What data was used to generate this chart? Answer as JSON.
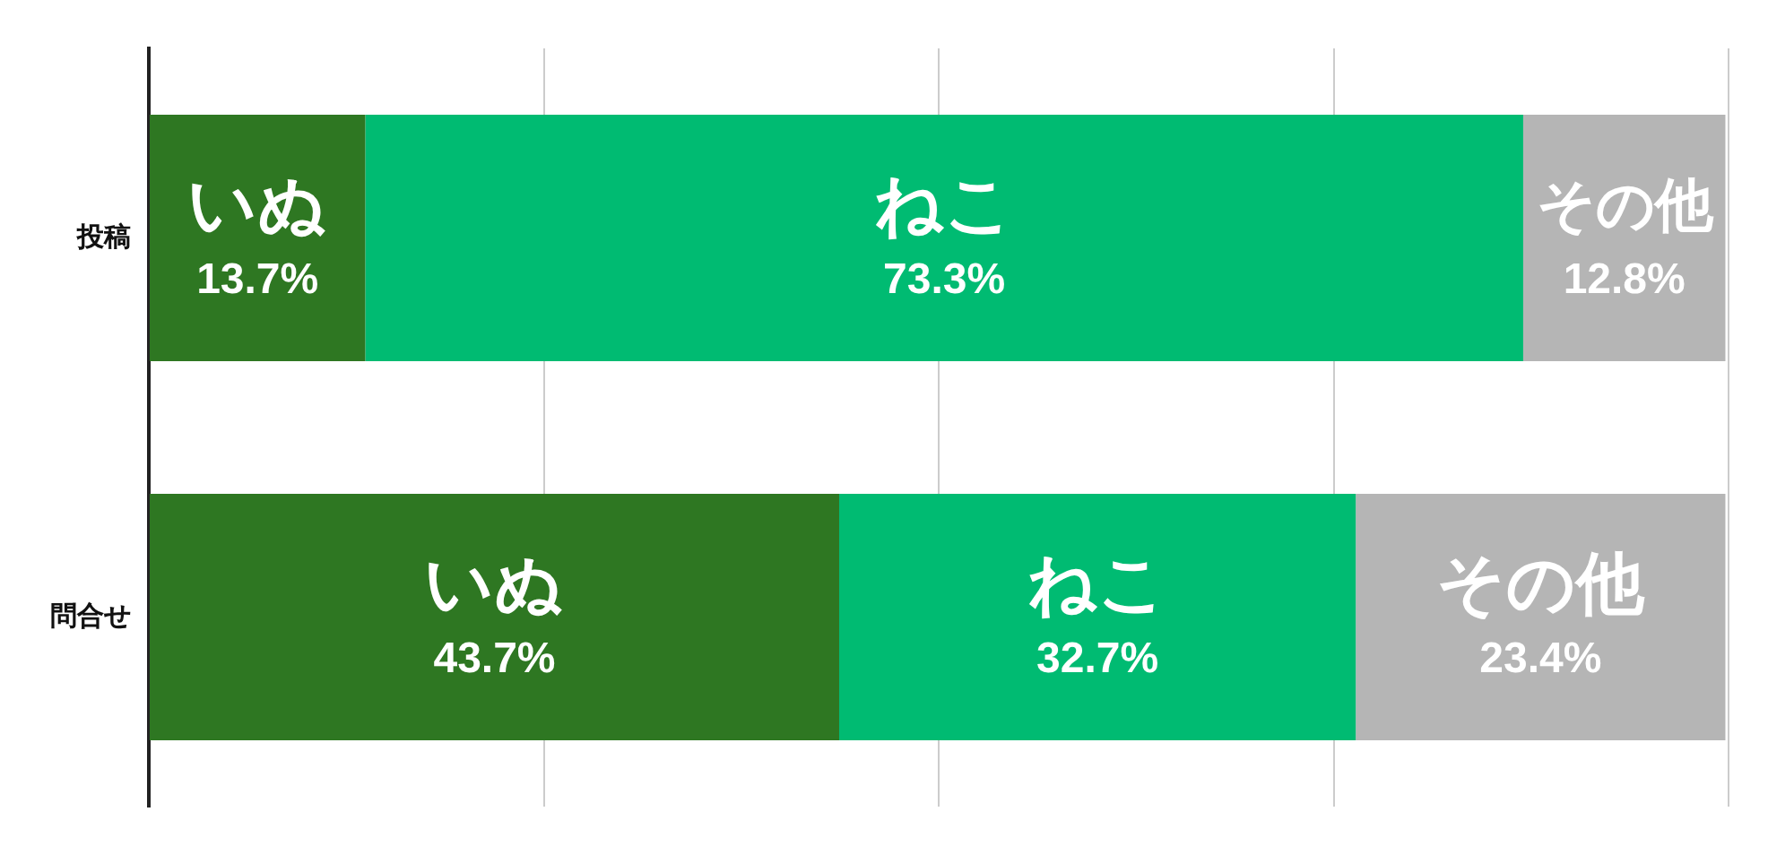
{
  "chart_data": {
    "type": "bar",
    "orientation": "horizontal",
    "stacked": true,
    "categories": [
      "投稿",
      "問合せ"
    ],
    "series": [
      {
        "name": "いぬ",
        "color": "#2e7722",
        "values": [
          13.7,
          43.7
        ],
        "value_labels": [
          "13.7%",
          "43.7%"
        ]
      },
      {
        "name": "ねこ",
        "color": "#00bb72",
        "values": [
          73.3,
          32.7
        ],
        "value_labels": [
          "73.3%",
          "32.7%"
        ]
      },
      {
        "name": "その他",
        "color": "#b5b5b5",
        "values": [
          12.8,
          23.4
        ],
        "value_labels": [
          "12.8%",
          "23.4%"
        ]
      }
    ],
    "xlim": [
      0,
      100
    ],
    "xticks": [
      {
        "value": 0,
        "label": null
      },
      {
        "value": 25,
        "label": null
      },
      {
        "value": 50,
        "label": null
      },
      {
        "value": 75,
        "label": null
      },
      {
        "value": 100,
        "label": null
      }
    ],
    "grid": "x",
    "tick_labels": "y",
    "data_labels": false
  }
}
